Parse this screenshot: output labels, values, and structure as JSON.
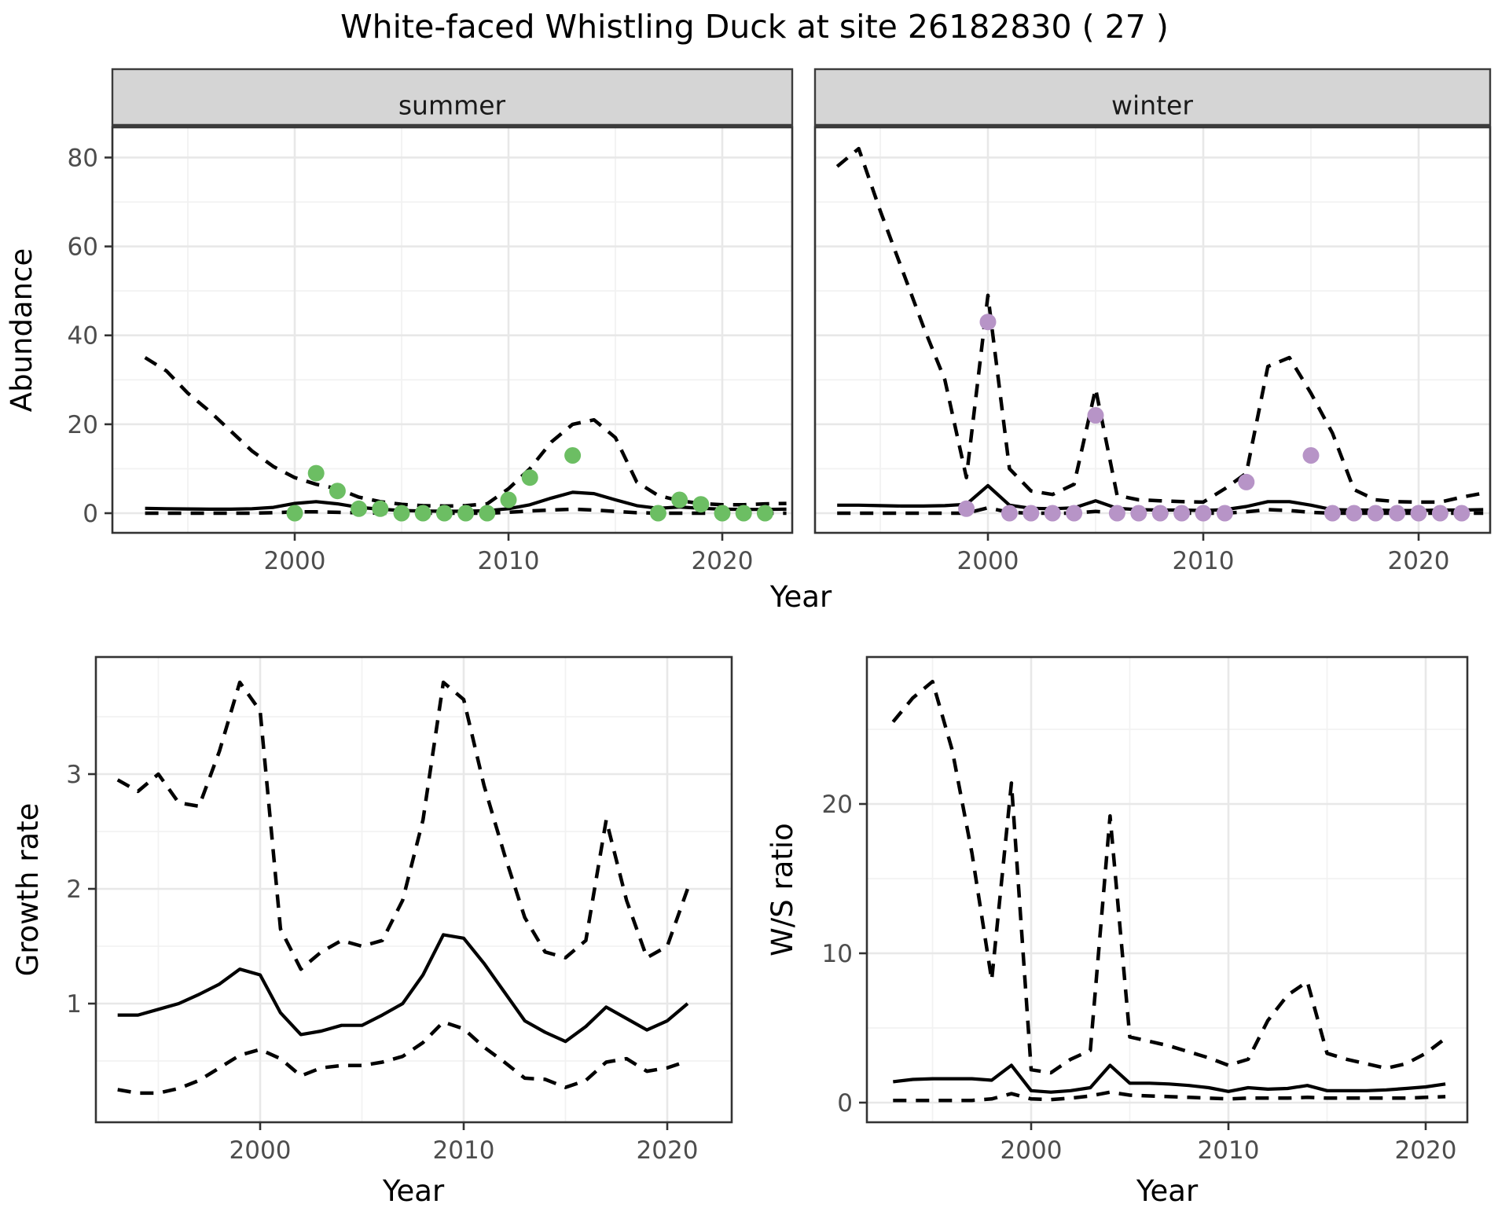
{
  "title": "White-faced Whistling Duck at site 26182830 ( 27 )",
  "shared_axes": {
    "top_ylabel": "Abundance",
    "top_xlabel": "Year"
  },
  "colors": {
    "summer_point": "#6cbe63",
    "winter_point": "#b794c7",
    "line": "#000000",
    "grid_major": "#e8e8e8",
    "grid_minor": "#f2f2f2",
    "strip_fill": "#d5d5d5",
    "panel_border": "#333333",
    "tick_text": "#4d4d4d"
  },
  "chart_data": [
    {
      "id": "abundance_summer",
      "type": "line",
      "facet": "summer",
      "ylabel": "Abundance",
      "xlabel": "Year",
      "y_ticks": [
        0,
        20,
        40,
        60,
        80
      ],
      "x_ticks": [
        2000,
        2010,
        2020
      ],
      "x_minor": [
        1995,
        2005,
        2015
      ],
      "y_minor": [
        10,
        30,
        50,
        70
      ],
      "show_y_labels": true,
      "xlim": [
        1991.5,
        2023.4
      ],
      "ylim": [
        -3.5,
        87
      ],
      "grid": true,
      "legend": "none",
      "years": [
        1993,
        1994,
        1995,
        1996,
        1997,
        1998,
        1999,
        2000,
        2001,
        2002,
        2003,
        2004,
        2005,
        2006,
        2007,
        2008,
        2009,
        2010,
        2011,
        2012,
        2013,
        2014,
        2015,
        2016,
        2017,
        2018,
        2019,
        2020,
        2021,
        2022,
        2023
      ],
      "series": [
        {
          "name": "fitted_median",
          "style": "solid",
          "values": [
            1.1,
            1.0,
            0.95,
            0.9,
            0.9,
            1.0,
            1.3,
            2.2,
            2.6,
            2.1,
            1.3,
            0.9,
            0.6,
            0.5,
            0.45,
            0.45,
            0.55,
            1.0,
            1.9,
            3.4,
            4.7,
            4.4,
            3.0,
            1.7,
            1.1,
            1.4,
            1.1,
            0.9,
            0.85,
            0.85,
            0.9
          ]
        },
        {
          "name": "upper_ci",
          "style": "dashed",
          "values": [
            35,
            32,
            27,
            23,
            18.5,
            14,
            10.5,
            8,
            6.5,
            5.5,
            3.6,
            2.6,
            2.0,
            1.7,
            1.6,
            1.7,
            2.1,
            5.5,
            10,
            16,
            20,
            21,
            17,
            7,
            4,
            2.8,
            2.2,
            1.9,
            1.9,
            2.1,
            2.2
          ]
        },
        {
          "name": "lower_ci",
          "style": "dashed",
          "values": [
            0,
            0,
            0,
            0,
            0,
            0,
            0.1,
            0.3,
            0.3,
            0.2,
            0.1,
            0,
            0,
            0,
            0,
            0,
            0,
            0.2,
            0.5,
            0.7,
            0.9,
            0.7,
            0.4,
            0.1,
            0,
            0,
            0,
            0,
            0,
            0,
            0
          ]
        }
      ],
      "points": {
        "name": "observed_counts",
        "color": "#6cbe63",
        "data": [
          [
            2000,
            0
          ],
          [
            2001,
            9
          ],
          [
            2002,
            5
          ],
          [
            2003,
            1
          ],
          [
            2004,
            1
          ],
          [
            2005,
            0
          ],
          [
            2006,
            0
          ],
          [
            2007,
            0
          ],
          [
            2008,
            0
          ],
          [
            2009,
            0
          ],
          [
            2010,
            3
          ],
          [
            2011,
            8
          ],
          [
            2013,
            13
          ],
          [
            2017,
            0
          ],
          [
            2018,
            3
          ],
          [
            2019,
            2
          ],
          [
            2020,
            0
          ],
          [
            2021,
            0
          ],
          [
            2022,
            0
          ]
        ]
      }
    },
    {
      "id": "abundance_winter",
      "type": "line",
      "facet": "winter",
      "ylabel": "Abundance",
      "xlabel": "Year",
      "y_ticks": [
        0,
        20,
        40,
        60,
        80
      ],
      "x_ticks": [
        2000,
        2010,
        2020
      ],
      "x_minor": [
        1995,
        2005,
        2015
      ],
      "y_minor": [
        10,
        30,
        50,
        70
      ],
      "show_y_labels": false,
      "xlim": [
        1992.0,
        2023.4
      ],
      "ylim": [
        -3.5,
        87
      ],
      "grid": true,
      "legend": "none",
      "years": [
        1993,
        1994,
        1995,
        1996,
        1997,
        1998,
        1999,
        2000,
        2001,
        2002,
        2003,
        2004,
        2005,
        2006,
        2007,
        2008,
        2009,
        2010,
        2011,
        2012,
        2013,
        2014,
        2015,
        2016,
        2017,
        2018,
        2019,
        2020,
        2021,
        2022,
        2023
      ],
      "series": [
        {
          "name": "fitted_median",
          "style": "solid",
          "values": [
            1.8,
            1.8,
            1.7,
            1.6,
            1.6,
            1.7,
            2.0,
            6.2,
            1.8,
            1.1,
            1.0,
            1.2,
            2.8,
            1.1,
            0.8,
            0.7,
            0.7,
            0.6,
            0.8,
            1.5,
            2.6,
            2.6,
            1.8,
            0.8,
            0.7,
            0.7,
            0.6,
            0.6,
            0.7,
            0.7,
            0.8
          ]
        },
        {
          "name": "upper_ci",
          "style": "dashed",
          "values": [
            78,
            82,
            68,
            55,
            42,
            30,
            8,
            49,
            10,
            5,
            4.2,
            6.5,
            28,
            4,
            3,
            2.8,
            2.6,
            2.5,
            5.5,
            9,
            33,
            35,
            27,
            18,
            5.3,
            3,
            2.6,
            2.5,
            2.5,
            3.6,
            4.5
          ]
        },
        {
          "name": "lower_ci",
          "style": "dashed",
          "values": [
            0,
            0,
            0,
            0,
            0,
            0,
            0,
            1.2,
            0.2,
            0,
            0,
            0,
            0.4,
            0,
            0,
            0,
            0,
            0,
            0,
            0.3,
            0.8,
            0.6,
            0.2,
            0,
            0,
            0,
            0,
            0,
            0,
            0,
            0
          ]
        }
      ],
      "points": {
        "name": "observed_counts",
        "color": "#b794c7",
        "data": [
          [
            1999,
            1
          ],
          [
            2000,
            43
          ],
          [
            2001,
            0
          ],
          [
            2002,
            0
          ],
          [
            2003,
            0
          ],
          [
            2004,
            0
          ],
          [
            2005,
            22
          ],
          [
            2006,
            0
          ],
          [
            2007,
            0
          ],
          [
            2008,
            0
          ],
          [
            2009,
            0
          ],
          [
            2010,
            0
          ],
          [
            2011,
            0
          ],
          [
            2012,
            7
          ],
          [
            2015,
            13
          ],
          [
            2016,
            0
          ],
          [
            2017,
            0
          ],
          [
            2018,
            0
          ],
          [
            2019,
            0
          ],
          [
            2020,
            0
          ],
          [
            2021,
            0
          ],
          [
            2022,
            0
          ]
        ]
      }
    },
    {
      "id": "growth_rate",
      "type": "line",
      "facet": null,
      "ylabel": "Growth rate",
      "xlabel": "Year",
      "y_ticks": [
        1,
        2,
        3
      ],
      "x_ticks": [
        2000,
        2010,
        2020
      ],
      "x_minor": [
        1995,
        2005,
        2015
      ],
      "y_minor": [
        0.5,
        1.5,
        2.5,
        3.5
      ],
      "show_y_labels": true,
      "xlim": [
        1991.9,
        2023.4
      ],
      "ylim": [
        -0.03,
        4.05
      ],
      "grid": true,
      "legend": "none",
      "years": [
        1993,
        1994,
        1995,
        1996,
        1997,
        1998,
        1999,
        2000,
        2001,
        2002,
        2003,
        2004,
        2005,
        2006,
        2007,
        2008,
        2009,
        2010,
        2011,
        2012,
        2013,
        2014,
        2015,
        2016,
        2017,
        2018,
        2019,
        2020,
        2021
      ],
      "series": [
        {
          "name": "median",
          "style": "solid",
          "values": [
            0.9,
            0.9,
            0.95,
            1.0,
            1.08,
            1.17,
            1.3,
            1.25,
            0.92,
            0.73,
            0.76,
            0.81,
            0.81,
            0.9,
            1.0,
            1.25,
            1.6,
            1.57,
            1.35,
            1.1,
            0.85,
            0.75,
            0.67,
            0.8,
            0.97,
            0.87,
            0.77,
            0.85,
            1.0
          ]
        },
        {
          "name": "upper_ci",
          "style": "dashed",
          "values": [
            2.95,
            2.85,
            3.0,
            2.75,
            2.72,
            3.2,
            3.8,
            3.55,
            1.65,
            1.3,
            1.45,
            1.55,
            1.5,
            1.55,
            1.9,
            2.6,
            3.8,
            3.65,
            2.9,
            2.3,
            1.75,
            1.45,
            1.4,
            1.55,
            2.6,
            1.9,
            1.4,
            1.5,
            2.0
          ]
        },
        {
          "name": "lower_ci",
          "style": "dashed",
          "values": [
            0.25,
            0.22,
            0.22,
            0.26,
            0.33,
            0.44,
            0.55,
            0.6,
            0.52,
            0.37,
            0.44,
            0.46,
            0.46,
            0.49,
            0.54,
            0.66,
            0.84,
            0.78,
            0.62,
            0.49,
            0.35,
            0.34,
            0.27,
            0.33,
            0.49,
            0.52,
            0.41,
            0.44,
            0.5
          ]
        }
      ],
      "points": null
    },
    {
      "id": "ws_ratio",
      "type": "line",
      "facet": null,
      "ylabel": "W/S ratio",
      "xlabel": "Year",
      "y_ticks": [
        0,
        10,
        20
      ],
      "x_ticks": [
        2000,
        2010,
        2020
      ],
      "x_minor": [
        1995,
        2005,
        2015
      ],
      "y_minor": [
        5,
        15,
        25
      ],
      "show_y_labels": true,
      "xlim": [
        1991.7,
        2023.1
      ],
      "ylim": [
        -1.3,
        29.8
      ],
      "grid": true,
      "legend": "none",
      "years": [
        1993,
        1994,
        1995,
        1996,
        1997,
        1998,
        1999,
        2000,
        2001,
        2002,
        2003,
        2004,
        2005,
        2006,
        2007,
        2008,
        2009,
        2010,
        2011,
        2012,
        2013,
        2014,
        2015,
        2016,
        2017,
        2018,
        2019,
        2020,
        2021
      ],
      "series": [
        {
          "name": "median",
          "style": "solid",
          "values": [
            1.4,
            1.55,
            1.6,
            1.6,
            1.6,
            1.5,
            2.5,
            0.8,
            0.7,
            0.8,
            1.0,
            2.5,
            1.3,
            1.3,
            1.25,
            1.15,
            1.0,
            0.75,
            1.0,
            0.9,
            0.95,
            1.15,
            0.8,
            0.8,
            0.8,
            0.85,
            0.95,
            1.05,
            1.25
          ]
        },
        {
          "name": "upper_ci",
          "style": "dashed",
          "values": [
            25.5,
            27.1,
            28.2,
            23.6,
            16.7,
            8.2,
            21.4,
            2.2,
            2.0,
            2.9,
            3.5,
            19.2,
            4.4,
            4.1,
            3.8,
            3.4,
            3.0,
            2.5,
            2.9,
            5.5,
            7.2,
            8.1,
            3.3,
            2.9,
            2.6,
            2.3,
            2.6,
            3.3,
            4.3
          ]
        },
        {
          "name": "lower_ci",
          "style": "dashed",
          "values": [
            0.15,
            0.15,
            0.15,
            0.15,
            0.15,
            0.25,
            0.6,
            0.25,
            0.2,
            0.3,
            0.45,
            0.7,
            0.5,
            0.45,
            0.4,
            0.35,
            0.3,
            0.25,
            0.3,
            0.3,
            0.3,
            0.35,
            0.3,
            0.3,
            0.3,
            0.3,
            0.3,
            0.35,
            0.4
          ]
        }
      ],
      "points": null
    }
  ]
}
